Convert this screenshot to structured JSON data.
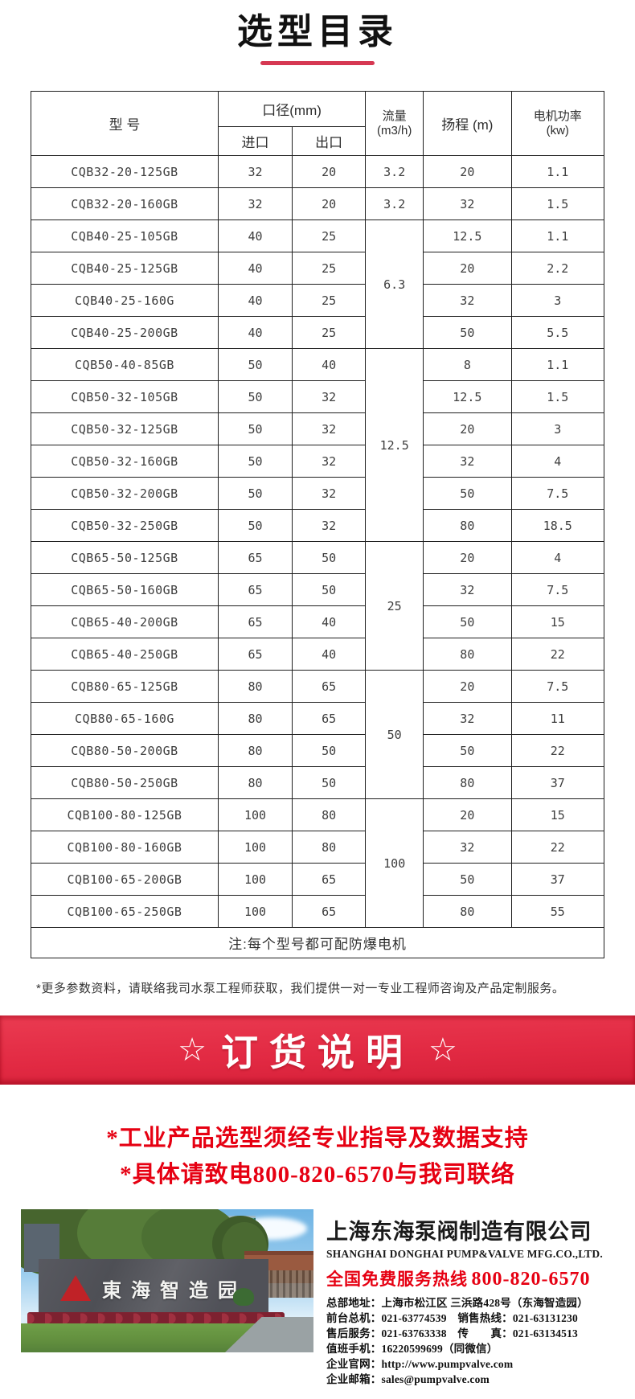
{
  "page": {
    "title": "选型目录"
  },
  "table": {
    "headers": {
      "model": "型 号",
      "diameter_group": "口径(mm)",
      "inlet": "进口",
      "outlet": "出口",
      "flow_line1": "流量",
      "flow_line2": "(m3/h)",
      "head": "扬程 (m)",
      "power_line1": "电机功率",
      "power_line2": "(kw)"
    },
    "rows": [
      {
        "model": "CQB32-20-125GB",
        "inlet": "32",
        "outlet": "20",
        "flow": "3.2",
        "flow_rowspan": 1,
        "head": "20",
        "power": "1.1"
      },
      {
        "model": "CQB32-20-160GB",
        "inlet": "32",
        "outlet": "20",
        "flow": "3.2",
        "flow_rowspan": 1,
        "head": "32",
        "power": "1.5"
      },
      {
        "model": "CQB40-25-105GB",
        "inlet": "40",
        "outlet": "25",
        "flow": "6.3",
        "flow_rowspan": 4,
        "head": "12.5",
        "power": "1.1"
      },
      {
        "model": "CQB40-25-125GB",
        "inlet": "40",
        "outlet": "25",
        "flow": null,
        "head": "20",
        "power": "2.2"
      },
      {
        "model": "CQB40-25-160G",
        "inlet": "40",
        "outlet": "25",
        "flow": null,
        "head": "32",
        "power": "3"
      },
      {
        "model": "CQB40-25-200GB",
        "inlet": "40",
        "outlet": "25",
        "flow": null,
        "head": "50",
        "power": "5.5"
      },
      {
        "model": "CQB50-40-85GB",
        "inlet": "50",
        "outlet": "40",
        "flow": "12.5",
        "flow_rowspan": 6,
        "head": "8",
        "power": "1.1"
      },
      {
        "model": "CQB50-32-105GB",
        "inlet": "50",
        "outlet": "32",
        "flow": null,
        "head": "12.5",
        "power": "1.5"
      },
      {
        "model": "CQB50-32-125GB",
        "inlet": "50",
        "outlet": "32",
        "flow": null,
        "head": "20",
        "power": "3"
      },
      {
        "model": "CQB50-32-160GB",
        "inlet": "50",
        "outlet": "32",
        "flow": null,
        "head": "32",
        "power": "4"
      },
      {
        "model": "CQB50-32-200GB",
        "inlet": "50",
        "outlet": "32",
        "flow": null,
        "head": "50",
        "power": "7.5"
      },
      {
        "model": "CQB50-32-250GB",
        "inlet": "50",
        "outlet": "32",
        "flow": null,
        "head": "80",
        "power": "18.5"
      },
      {
        "model": "CQB65-50-125GB",
        "inlet": "65",
        "outlet": "50",
        "flow": "25",
        "flow_rowspan": 4,
        "head": "20",
        "power": "4"
      },
      {
        "model": "CQB65-50-160GB",
        "inlet": "65",
        "outlet": "50",
        "flow": null,
        "head": "32",
        "power": "7.5"
      },
      {
        "model": "CQB65-40-200GB",
        "inlet": "65",
        "outlet": "40",
        "flow": null,
        "head": "50",
        "power": "15"
      },
      {
        "model": "CQB65-40-250GB",
        "inlet": "65",
        "outlet": "40",
        "flow": null,
        "head": "80",
        "power": "22"
      },
      {
        "model": "CQB80-65-125GB",
        "inlet": "80",
        "outlet": "65",
        "flow": "50",
        "flow_rowspan": 4,
        "head": "20",
        "power": "7.5"
      },
      {
        "model": "CQB80-65-160G",
        "inlet": "80",
        "outlet": "65",
        "flow": null,
        "head": "32",
        "power": "11"
      },
      {
        "model": "CQB80-50-200GB",
        "inlet": "80",
        "outlet": "50",
        "flow": null,
        "head": "50",
        "power": "22"
      },
      {
        "model": "CQB80-50-250GB",
        "inlet": "80",
        "outlet": "50",
        "flow": null,
        "head": "80",
        "power": "37"
      },
      {
        "model": "CQB100-80-125GB",
        "inlet": "100",
        "outlet": "80",
        "flow": "100",
        "flow_rowspan": 4,
        "head": "20",
        "power": "15"
      },
      {
        "model": "CQB100-80-160GB",
        "inlet": "100",
        "outlet": "80",
        "flow": null,
        "head": "32",
        "power": "22"
      },
      {
        "model": "CQB100-65-200GB",
        "inlet": "100",
        "outlet": "65",
        "flow": null,
        "head": "50",
        "power": "37"
      },
      {
        "model": "CQB100-65-250GB",
        "inlet": "100",
        "outlet": "65",
        "flow": null,
        "head": "80",
        "power": "55"
      }
    ],
    "note": "注:每个型号都可配防爆电机"
  },
  "footnote": "*更多参数资料，请联络我司水泵工程师获取，我们提供一对一专业工程师咨询及产品定制服务。",
  "order_banner": {
    "star_left": "☆",
    "title": "订货说明",
    "star_right": "☆"
  },
  "order_notes": [
    "*工业产品选型须经专业指导及数据支持",
    "*具体请致电800-820-6570与我司联络"
  ],
  "company": {
    "photo_sign": "東海智造园",
    "name_cn": "上海东海泵阀制造有限公司",
    "name_en": "SHANGHAI DONGHAI PUMP&VALVE MFG.CO.,LTD.",
    "hotline_label": "全国免费服务热线",
    "hotline_number": "800-820-6570",
    "info_lines": [
      "总部地址：上海市松江区 三浜路428号（东海智造园）",
      "前台总机：021-63774539　销售热线：021-63131230",
      "售后服务：021-63763338　传　　真：021-63134513",
      "值班手机：16220599699（同微信）",
      "企业官网：http://www.pumpvalve.com",
      "企业邮箱：sales@pumpvalve.com"
    ]
  },
  "colors": {
    "banner_red": "#e22a43",
    "accent_red": "#e60012",
    "underline_red": "#d63852",
    "table_border": "#1f1f1f"
  }
}
